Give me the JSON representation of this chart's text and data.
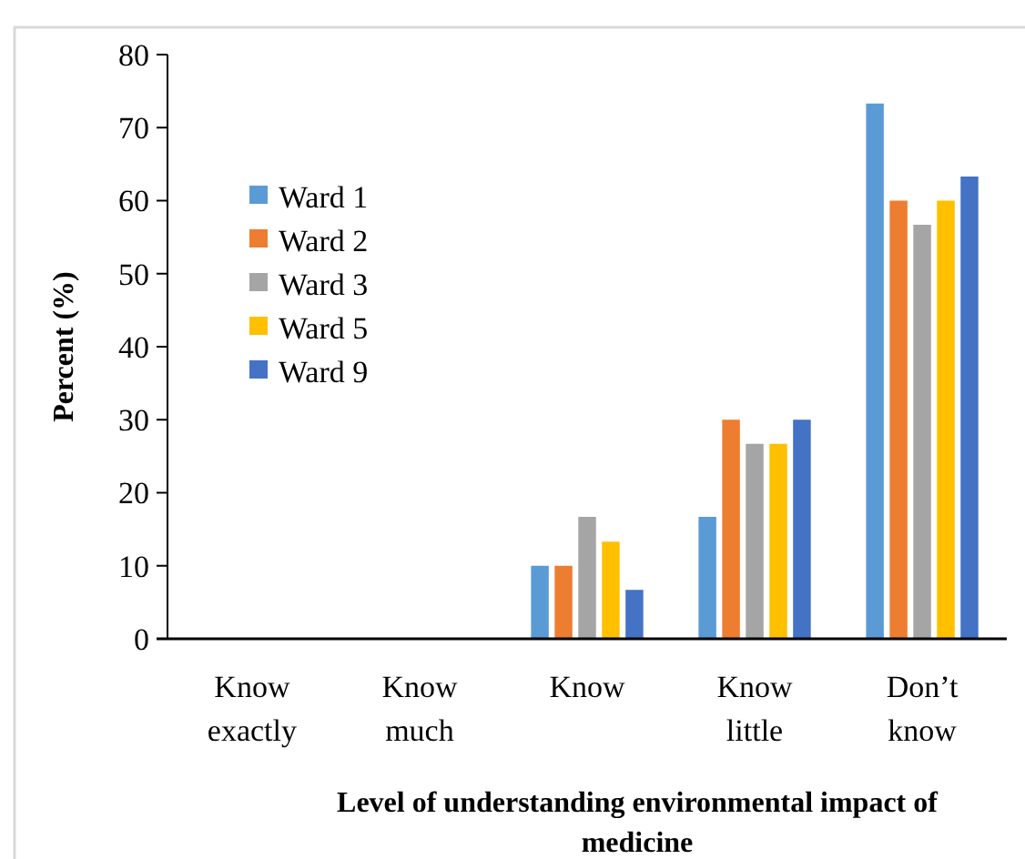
{
  "chart_data": {
    "type": "bar",
    "xlabel": "Level of understanding environmental impact of medicine",
    "ylabel": "Percent (%)",
    "categories": [
      "Know\nexactly",
      "Know\nmuch",
      "Know",
      "Know\nlittle",
      "Don’t\nknow"
    ],
    "series": [
      {
        "name": "Ward 1",
        "color": "#5b9bd5",
        "values": [
          0,
          0,
          10,
          16.7,
          73.3
        ]
      },
      {
        "name": "Ward 2",
        "color": "#ed7d31",
        "values": [
          0,
          0,
          10,
          30,
          60
        ]
      },
      {
        "name": "Ward 3",
        "color": "#a5a5a5",
        "values": [
          0,
          0,
          16.7,
          26.7,
          56.7
        ]
      },
      {
        "name": "Ward 5",
        "color": "#ffc000",
        "values": [
          0,
          0,
          13.3,
          26.7,
          60
        ]
      },
      {
        "name": "Ward 9",
        "color": "#4472c4",
        "values": [
          0,
          0,
          6.7,
          30,
          63.3
        ]
      }
    ],
    "ylim": [
      0,
      80
    ],
    "yticks": [
      0,
      10,
      20,
      30,
      40,
      50,
      60,
      70,
      80
    ],
    "grid": false,
    "legend": "top left"
  }
}
